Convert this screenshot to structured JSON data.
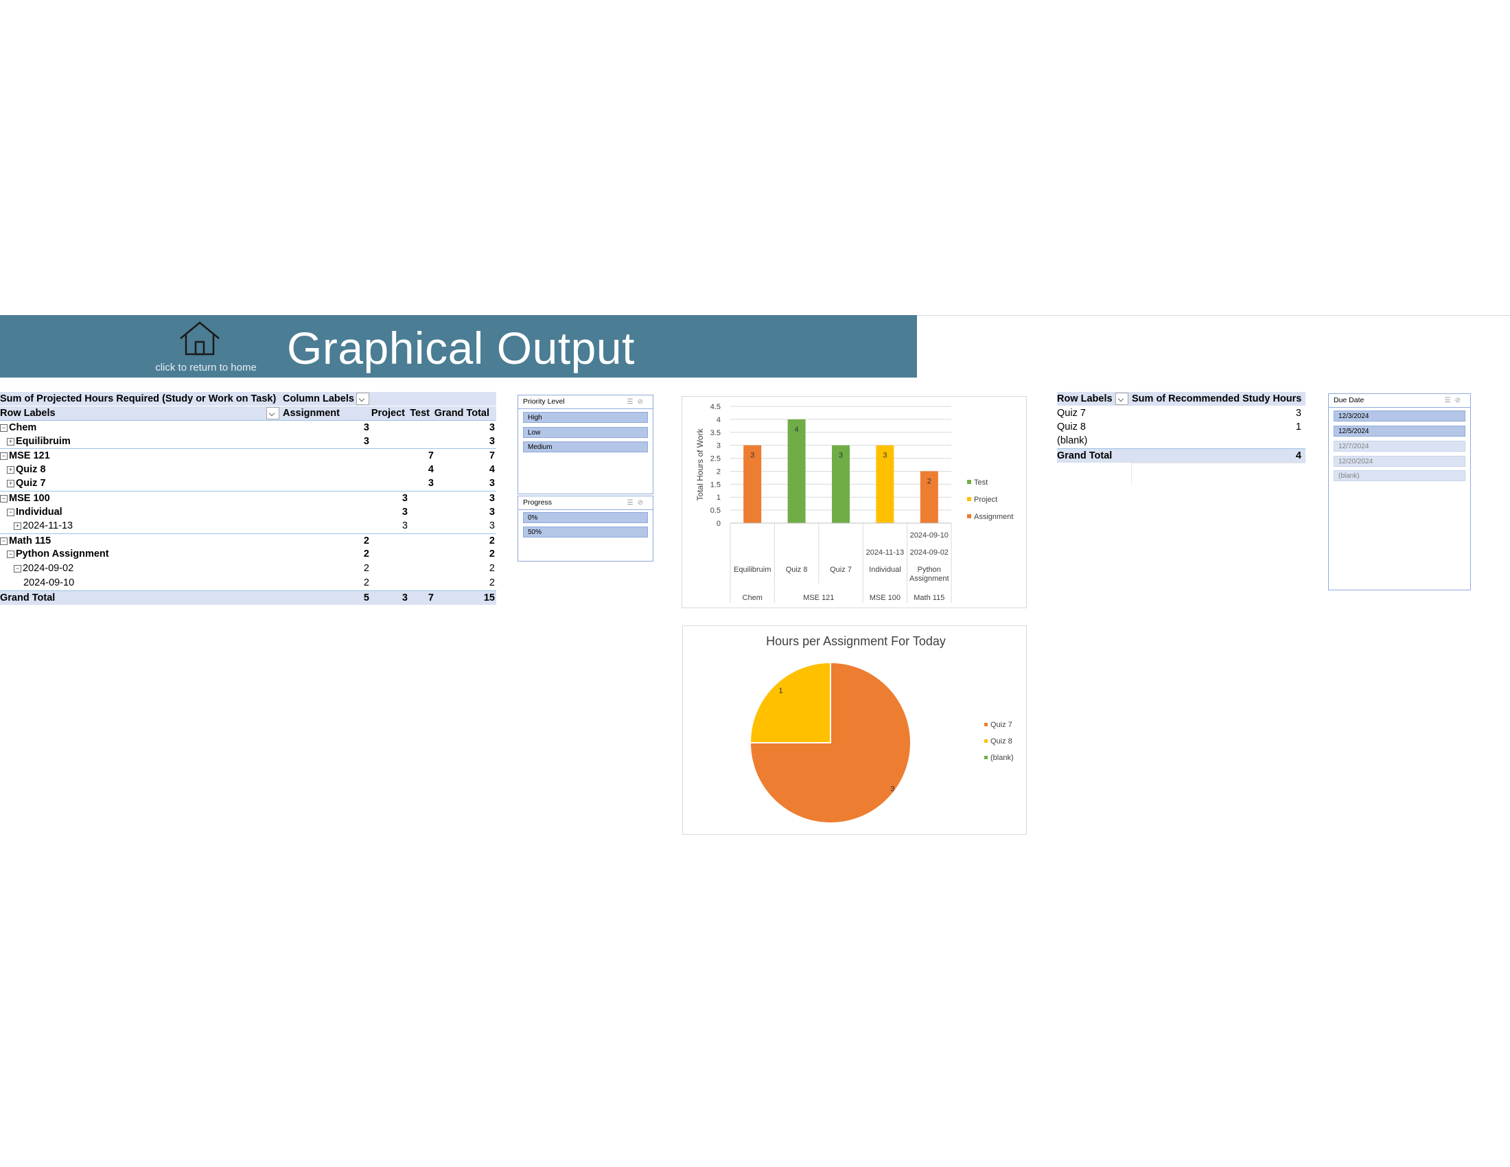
{
  "banner": {
    "title": "Graphical Output",
    "home_caption": "click to return to home",
    "color": "#4b7d95"
  },
  "pivot1": {
    "title": "Sum of Projected Hours Required (Study or Work on Task)",
    "column_labels": "Column Labels",
    "row_labels": "Row Labels",
    "col_headers": [
      "Assignment",
      "Project",
      "Test",
      "Grand Total"
    ],
    "rows": [
      {
        "label": "Chem",
        "assignment": "3",
        "project": "",
        "test": "",
        "total": "3"
      },
      {
        "label": "Equilibruim",
        "assignment": "3",
        "project": "",
        "test": "",
        "total": "3"
      },
      {
        "label": "MSE 121",
        "assignment": "",
        "project": "",
        "test": "7",
        "total": "7"
      },
      {
        "label": "Quiz 8",
        "assignment": "",
        "project": "",
        "test": "4",
        "total": "4"
      },
      {
        "label": "Quiz 7",
        "assignment": "",
        "project": "",
        "test": "3",
        "total": "3"
      },
      {
        "label": "MSE 100",
        "assignment": "",
        "project": "3",
        "test": "",
        "total": "3"
      },
      {
        "label": "Individual",
        "assignment": "",
        "project": "3",
        "test": "",
        "total": "3"
      },
      {
        "label": "2024-11-13",
        "assignment": "",
        "project": "3",
        "test": "",
        "total": "3"
      },
      {
        "label": "Math 115",
        "assignment": "2",
        "project": "",
        "test": "",
        "total": "2"
      },
      {
        "label": "Python Assignment",
        "assignment": "2",
        "project": "",
        "test": "",
        "total": "2"
      },
      {
        "label": "2024-09-02",
        "assignment": "2",
        "project": "",
        "test": "",
        "total": "2"
      },
      {
        "label": "2024-09-10",
        "assignment": "2",
        "project": "",
        "test": "",
        "total": "2"
      }
    ],
    "grand_total": {
      "label": "Grand Total",
      "assignment": "5",
      "project": "3",
      "test": "7",
      "total": "15"
    }
  },
  "slicer_priority": {
    "title": "Priority Level",
    "items": [
      "High",
      "Low",
      "Medium"
    ]
  },
  "slicer_progress": {
    "title": "Progress",
    "items": [
      "0%",
      "50%"
    ]
  },
  "pivot2": {
    "row_labels": "Row Labels",
    "value_header": "Sum of Recommended Study Hours",
    "rows": [
      {
        "label": "Quiz 7",
        "value": "3"
      },
      {
        "label": "Quiz 8",
        "value": "1"
      },
      {
        "label": "(blank)",
        "value": ""
      }
    ],
    "grand_total": {
      "label": "Grand Total",
      "value": "4"
    }
  },
  "slicer_duedate": {
    "title": "Due Date",
    "items": [
      "12/3/2024",
      "12/5/2024",
      "12/7/2024",
      "12/20/2024",
      "(blank)"
    ],
    "selected": [
      true,
      true,
      false,
      false,
      false
    ]
  },
  "chart_data": [
    {
      "type": "bar",
      "title": "",
      "xlabel": "",
      "ylabel": "Total Hours of Work",
      "ylim": [
        0,
        4.5
      ],
      "yticks": [
        "0",
        "0.5",
        "1",
        "1.5",
        "2",
        "2.5",
        "3",
        "3.5",
        "4",
        "4.5"
      ],
      "grid": true,
      "legend_position": "right",
      "legend": [
        {
          "name": "Test",
          "color": "#70ad47"
        },
        {
          "name": "Project",
          "color": "#ffc000"
        },
        {
          "name": "Assignment",
          "color": "#ed7d31"
        }
      ],
      "bars": [
        {
          "label": "Equilibruim",
          "series": "Assignment",
          "value": 3,
          "color": "#ed7d31"
        },
        {
          "label": "Quiz 8",
          "series": "Test",
          "value": 4,
          "color": "#70ad47"
        },
        {
          "label": "Quiz 7",
          "series": "Test",
          "value": 3,
          "color": "#70ad47"
        },
        {
          "label": "2024-11-13",
          "series": "Project",
          "value": 3,
          "color": "#ffc000"
        },
        {
          "label": "2024-09-10",
          "series": "Assignment",
          "value": 2,
          "color": "#ed7d31"
        }
      ],
      "category_levels": {
        "level1": [
          "",
          "",
          "",
          "2024-11-13",
          "2024-09-02"
        ],
        "level1_extra": [
          "",
          "",
          "",
          "",
          "2024-09-10"
        ],
        "level2": [
          "Equilibruim",
          "Quiz 8",
          "Quiz 7",
          "Individual",
          "Python Assignment"
        ],
        "level3": [
          "Chem",
          "MSE 121",
          "MSE 100",
          "Math 115"
        ]
      }
    },
    {
      "type": "pie",
      "title": "Hours per Assignment For Today",
      "legend_position": "right",
      "slices": [
        {
          "label": "Quiz 7",
          "value": 3,
          "color": "#ed7d31"
        },
        {
          "label": "Quiz 8",
          "value": 1,
          "color": "#ffc000"
        },
        {
          "label": "(blank)",
          "value": 0,
          "color": "#70ad47"
        }
      ]
    }
  ]
}
